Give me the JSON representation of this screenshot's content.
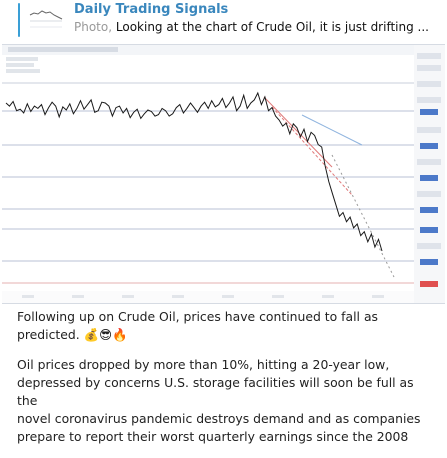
{
  "reply": {
    "title": "Daily Trading Signals",
    "kind": "Photo,",
    "snippet": "Looking at the chart of Crude Oil, it is just drifting ..."
  },
  "chart": {
    "accent_color": "#3a87bd",
    "price_color": "#1a1a1a",
    "series": [
      62,
      58,
      64,
      52,
      54,
      49,
      61,
      51,
      58,
      55,
      60,
      47,
      56,
      63,
      58,
      44,
      57,
      53,
      61,
      48,
      55,
      65,
      54,
      60,
      66,
      50,
      52,
      63,
      62,
      58,
      45,
      56,
      58,
      49,
      55,
      43,
      50,
      54,
      42,
      48,
      53,
      51,
      45,
      47,
      55,
      52,
      45,
      48,
      56,
      60,
      49,
      55,
      62,
      56,
      50,
      58,
      63,
      55,
      65,
      57,
      60,
      68,
      56,
      62,
      70,
      52,
      58,
      72,
      55,
      62,
      66,
      75,
      60,
      70,
      52,
      56,
      45,
      40,
      32,
      36,
      22,
      35,
      30,
      18,
      28,
      12,
      24,
      20,
      8,
      5,
      -20,
      -40,
      -55,
      -70,
      -85,
      -80,
      -92,
      -86,
      -100,
      -95,
      -110,
      -105,
      -118,
      -108,
      -125,
      -115,
      -130
    ]
  },
  "caption": {
    "para1_line1": "Following up on Crude Oil, prices have continued to fall as",
    "para1_line2": "predicted. 💰😎🔥",
    "para2_line1": "Oil prices dropped by more than 10%, hitting a 20-year low,",
    "para2_line2": "depressed by concerns U.S. storage facilities will soon be full as the",
    "para2_line3": "novel coronavirus pandemic destroys demand and as companies",
    "para2_line4": "prepare to report their worst quarterly earnings since the 2008"
  }
}
